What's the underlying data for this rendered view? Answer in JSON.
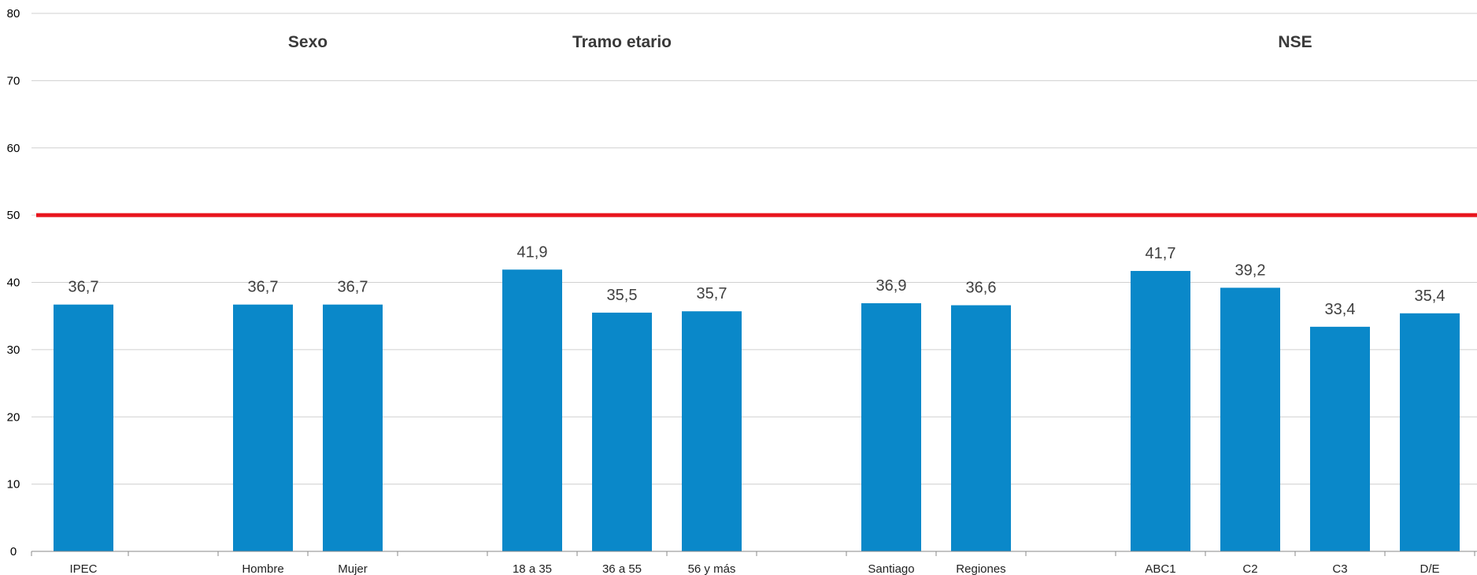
{
  "chart_data": {
    "type": "bar",
    "categories": [
      "IPEC",
      "",
      "Hombre",
      "Mujer",
      "",
      "18 a 35",
      "36 a 55",
      "56 y más",
      "",
      "Santiago",
      "Regiones",
      "",
      "ABC1",
      "C2",
      "C3",
      "D/E"
    ],
    "values": [
      36.7,
      null,
      36.7,
      36.7,
      null,
      41.9,
      35.5,
      35.7,
      null,
      36.9,
      36.6,
      null,
      41.7,
      39.2,
      33.4,
      35.4
    ],
    "value_labels": [
      "36,7",
      "",
      "36,7",
      "36,7",
      "",
      "41,9",
      "35,5",
      "35,7",
      "",
      "36,9",
      "36,6",
      "",
      "41,7",
      "39,2",
      "33,4",
      "35,4"
    ],
    "ylim": [
      0,
      80
    ],
    "yticks": [
      "0",
      "10",
      "20",
      "30",
      "40",
      "50",
      "60",
      "70",
      "80"
    ],
    "reference_line": {
      "value": 50,
      "color": "#e8141c"
    },
    "groups": [
      {
        "label": "Sexo",
        "center_index": 2.5
      },
      {
        "label": "Tramo etario",
        "center_index": 6
      },
      {
        "label": "NSE",
        "center_index": 13.5
      }
    ],
    "bar_color": "#0a88c9",
    "grid": true,
    "legend": "none"
  }
}
